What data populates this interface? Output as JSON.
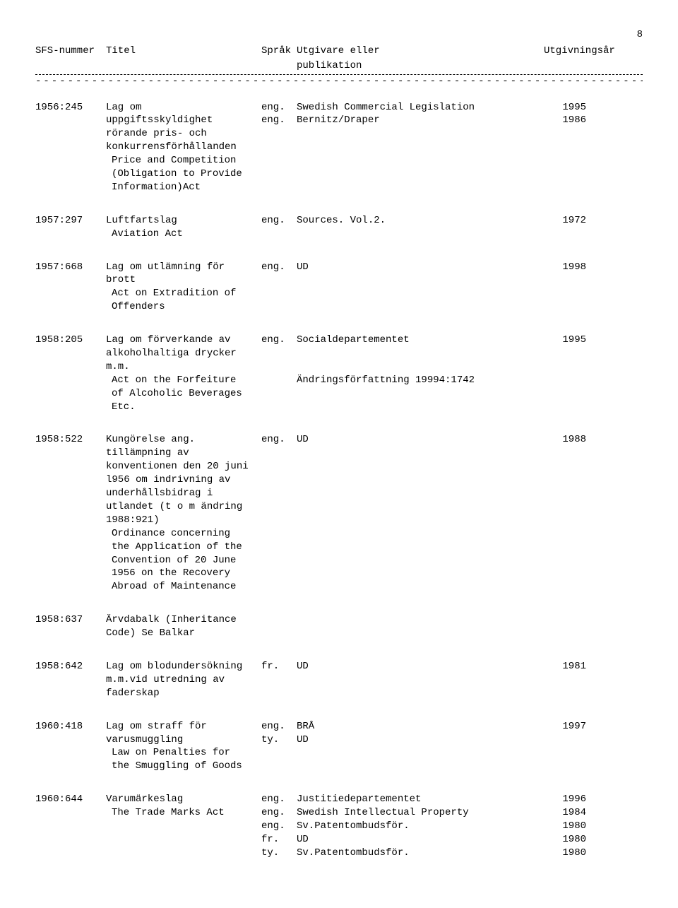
{
  "page_number": "8",
  "header": {
    "sfs": "SFS-nummer",
    "title": "Titel",
    "lang": "Språk",
    "pub1": "Utgivare eller",
    "pub2": "publikation",
    "year": "Utgivningsår"
  },
  "entries": [
    {
      "sfs": "1956:245",
      "title_lines": [
        "Lag om",
        "uppgiftsskyldighet",
        "rörande pris- och",
        "konkurrensförhållanden"
      ],
      "desc_lines": [
        "Price and Competition",
        "(Obligation to Provide",
        "Information)Act"
      ],
      "rows": [
        {
          "lang": "eng.",
          "pub": "Swedish Commercial Legislation",
          "year": "1995"
        },
        {
          "lang": "eng.",
          "pub": "Bernitz/Draper",
          "year": "1986"
        }
      ]
    },
    {
      "sfs": "1957:297",
      "title_lines": [
        "Luftfartslag"
      ],
      "desc_lines": [
        "Aviation Act"
      ],
      "rows": [
        {
          "lang": "eng.",
          "pub": "Sources. Vol.2.",
          "year": "1972"
        }
      ]
    },
    {
      "sfs": "1957:668",
      "title_lines": [
        "Lag om utlämning för",
        "brott"
      ],
      "desc_lines": [
        "Act on Extradition of",
        "Offenders"
      ],
      "rows": [
        {
          "lang": "eng.",
          "pub": "UD",
          "year": "1998"
        }
      ]
    },
    {
      "sfs": "1958:205",
      "title_lines": [
        "Lag om förverkande av",
        "alkoholhaltiga drycker",
        "m.m."
      ],
      "desc_lines": [
        "Act on the Forfeiture",
        "of Alcoholic Beverages",
        "Etc."
      ],
      "rows": [
        {
          "lang": "eng.",
          "pub": "Socialdepartementet",
          "year": "1995"
        },
        {
          "lang": "",
          "pub": "",
          "year": ""
        },
        {
          "lang": "",
          "pub": "",
          "year": ""
        },
        {
          "lang": "",
          "pub": "Ändringsförfattning 19994:1742",
          "year": ""
        }
      ]
    },
    {
      "sfs": "1958:522",
      "title_lines": [
        "Kungörelse ang.",
        "tillämpning av",
        "konventionen den 20 juni",
        "l956 om indrivning av",
        "underhållsbidrag i",
        "utlandet (t o m ändring",
        "1988:921)"
      ],
      "desc_lines": [
        "Ordinance concerning",
        "the Application of the",
        "Convention of 20 June",
        "1956 on the Recovery",
        "Abroad of Maintenance"
      ],
      "rows": [
        {
          "lang": "eng.",
          "pub": "UD",
          "year": "1988"
        }
      ]
    },
    {
      "sfs": "1958:637",
      "title_lines": [
        "Ärvdabalk (Inheritance",
        "Code) Se Balkar"
      ],
      "desc_lines": [],
      "rows": []
    },
    {
      "sfs": "1958:642",
      "title_lines": [
        "Lag om blodundersökning",
        "m.m.vid utredning av",
        "faderskap"
      ],
      "desc_lines": [],
      "rows": [
        {
          "lang": "fr.",
          "pub": "UD",
          "year": "1981"
        }
      ]
    },
    {
      "sfs": "1960:418",
      "title_lines": [
        "Lag om straff för",
        "varusmuggling"
      ],
      "desc_lines": [
        "Law on Penalties for",
        "the Smuggling of Goods"
      ],
      "rows": [
        {
          "lang": "eng.",
          "pub": "BRÅ",
          "year": "1997"
        },
        {
          "lang": "ty.",
          "pub": "UD",
          "year": ""
        }
      ]
    },
    {
      "sfs": "1960:644",
      "title_lines": [
        "Varumärkeslag"
      ],
      "desc_lines": [
        "The Trade Marks Act"
      ],
      "rows": [
        {
          "lang": "eng.",
          "pub": "Justitiedepartementet",
          "year": "1996"
        },
        {
          "lang": "eng.",
          "pub": "Swedish Intellectual Property",
          "year": "1984"
        },
        {
          "lang": "eng.",
          "pub": "Sv.Patentombudsför.",
          "year": "1980"
        },
        {
          "lang": "fr.",
          "pub": "UD",
          "year": "1980"
        },
        {
          "lang": "ty.",
          "pub": "Sv.Patentombudsför.",
          "year": "1980"
        }
      ]
    }
  ]
}
